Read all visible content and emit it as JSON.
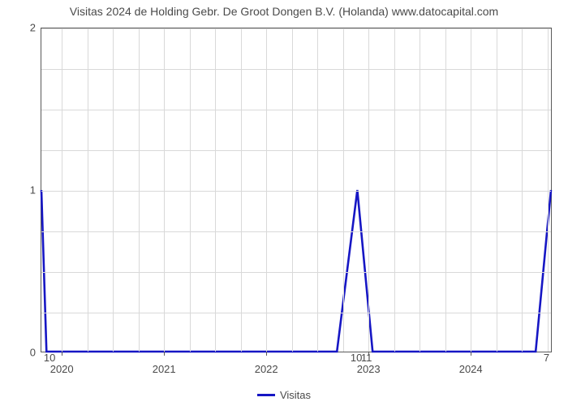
{
  "chart": {
    "type": "line",
    "title": "Visitas 2024 de Holding Gebr. De Groot Dongen B.V. (Holanda) www.datocapital.com",
    "title_fontsize": 14,
    "title_color": "#4a4a4a",
    "background_color": "#ffffff",
    "plot_border_color": "#5a5a5a",
    "grid_color": "#d9d9d9",
    "line_color": "#1616c4",
    "line_width": 2.6,
    "x_range_years": [
      2019.8,
      2024.8
    ],
    "ylim": [
      0,
      2
    ],
    "y_ticks": [
      0,
      1,
      2
    ],
    "x_year_ticks": [
      2020,
      2021,
      2022,
      2023,
      2024
    ],
    "data_points_years": [
      2019.8,
      2019.85,
      2022.7,
      2022.9,
      2023.05,
      2024.65,
      2024.8
    ],
    "data_points_values": [
      1,
      0,
      0,
      1,
      0,
      0,
      1
    ],
    "value_annotations": [
      {
        "year": 2019.88,
        "label": "10"
      },
      {
        "year": 2022.88,
        "label": "10"
      },
      {
        "year": 2022.98,
        "label": "11"
      },
      {
        "year": 2024.74,
        "label": "7"
      }
    ],
    "legend_label": "Visitas"
  }
}
